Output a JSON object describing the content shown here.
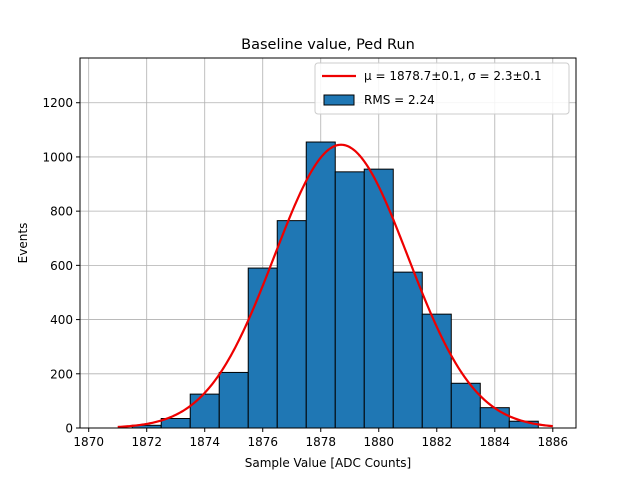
{
  "chart_data": {
    "type": "bar",
    "title": "Baseline value, Ped Run",
    "xlabel": "Sample Value [ADC Counts]",
    "ylabel": "Events",
    "xlim": [
      1869.7,
      1886.8
    ],
    "ylim": [
      0,
      1365
    ],
    "xticks": [
      1870,
      1872,
      1874,
      1876,
      1878,
      1880,
      1882,
      1884,
      1886
    ],
    "yticks": [
      0,
      200,
      400,
      600,
      800,
      1000,
      1200
    ],
    "grid": true,
    "legend_position": "top-right",
    "histogram": {
      "name": "RMS = 2.24",
      "bin_width": 1.0,
      "bins": [
        {
          "x0": 1870.5,
          "count": 0
        },
        {
          "x0": 1871.5,
          "count": 10
        },
        {
          "x0": 1872.5,
          "count": 35
        },
        {
          "x0": 1873.5,
          "count": 125
        },
        {
          "x0": 1874.5,
          "count": 205
        },
        {
          "x0": 1875.5,
          "count": 590
        },
        {
          "x0": 1876.5,
          "count": 765
        },
        {
          "x0": 1877.5,
          "count": 1055
        },
        {
          "x0": 1878.5,
          "count": 945
        },
        {
          "x0": 1879.5,
          "count": 955
        },
        {
          "x0": 1880.5,
          "count": 575
        },
        {
          "x0": 1881.5,
          "count": 420
        },
        {
          "x0": 1882.5,
          "count": 165
        },
        {
          "x0": 1883.5,
          "count": 75
        },
        {
          "x0": 1884.5,
          "count": 25
        },
        {
          "x0": 1885.5,
          "count": 0
        }
      ],
      "color": "#1f77b4"
    },
    "fit": {
      "name": "μ = 1878.7±0.1, σ = 2.3±0.1",
      "mu": 1878.7,
      "sigma": 2.3,
      "amplitude": 1045,
      "x_range": [
        1871.0,
        1886.0
      ],
      "color": "#ee0000"
    }
  }
}
